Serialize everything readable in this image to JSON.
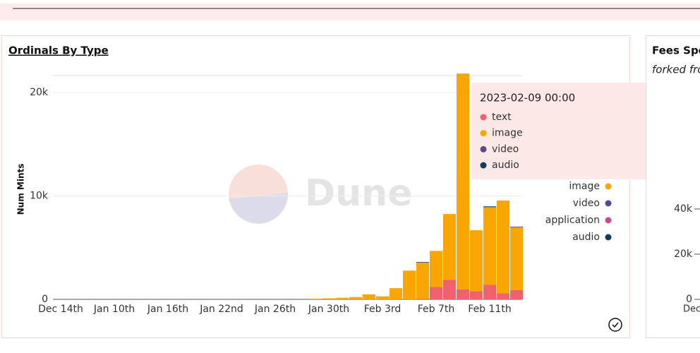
{
  "chart_data": {
    "type": "bar",
    "stacked": true,
    "title": "Ordinals By Type",
    "y_label": "Num Mints",
    "watermark": "Dune",
    "categories": [
      "Dec 14th",
      null,
      null,
      null,
      "Jan 10th",
      null,
      null,
      null,
      "Jan 16th",
      null,
      null,
      null,
      "Jan 22nd",
      null,
      null,
      null,
      "Jan 26th",
      null,
      null,
      null,
      "Jan 30th",
      null,
      null,
      null,
      "Feb 3rd",
      null,
      null,
      null,
      "Feb 7th",
      null,
      null,
      null,
      "Feb 11th",
      null,
      null
    ],
    "series": [
      {
        "name": "text",
        "color": "#f0616d",
        "values": [
          0,
          0,
          0,
          0,
          0,
          0,
          0,
          0,
          0,
          0,
          0,
          0,
          0,
          0,
          0,
          0,
          0,
          0,
          0,
          0,
          0,
          0,
          0,
          0,
          0,
          0,
          0,
          30,
          1200,
          1900,
          965,
          800,
          1400,
          600,
          900
        ]
      },
      {
        "name": "image",
        "color": "#f9a502",
        "values": [
          0,
          0,
          0,
          0,
          0,
          0,
          0,
          0,
          0,
          0,
          0,
          0,
          0,
          0,
          0,
          0,
          0,
          0,
          0,
          60,
          100,
          150,
          220,
          480,
          290,
          1080,
          2780,
          3520,
          3480,
          6350,
          20848,
          5880,
          7500,
          8950,
          6050
        ]
      },
      {
        "name": "video",
        "color": "#5b4a8b",
        "values": [
          0,
          0,
          0,
          0,
          0,
          0,
          0,
          0,
          0,
          0,
          0,
          0,
          0,
          0,
          0,
          0,
          0,
          0,
          0,
          0,
          0,
          0,
          0,
          0,
          0,
          0,
          0,
          50,
          0,
          0,
          9,
          0,
          60,
          0,
          50
        ]
      },
      {
        "name": "application",
        "color": "#c74a8a",
        "values": [
          0,
          0,
          0,
          0,
          0,
          0,
          0,
          0,
          0,
          0,
          0,
          0,
          0,
          0,
          0,
          0,
          0,
          0,
          0,
          0,
          0,
          0,
          0,
          0,
          0,
          0,
          0,
          0,
          0,
          0,
          0,
          0,
          0,
          0,
          30
        ]
      },
      {
        "name": "audio",
        "color": "#0d3d5c",
        "values": [
          0,
          0,
          0,
          0,
          0,
          0,
          0,
          0,
          0,
          0,
          0,
          0,
          0,
          0,
          0,
          0,
          0,
          0,
          0,
          0,
          0,
          0,
          0,
          0,
          0,
          0,
          0,
          20,
          0,
          0,
          2,
          0,
          40,
          0,
          0
        ]
      }
    ],
    "ylim": [
      0,
      22000
    ],
    "yticks": [
      0,
      {
        "value": 10000,
        "label": "10k"
      },
      {
        "value": 20000,
        "label": "20k"
      }
    ],
    "grid": true,
    "tooltip": {
      "title": "2023-02-09 00:00",
      "index": 30
    }
  },
  "side_panel": {
    "title": "Fees Spe",
    "subtitle": "forked fro",
    "yticks": [
      0,
      {
        "value": 20000,
        "label": "20k"
      },
      {
        "value": 40000,
        "label": "40k"
      }
    ],
    "x_label": "Dec"
  }
}
